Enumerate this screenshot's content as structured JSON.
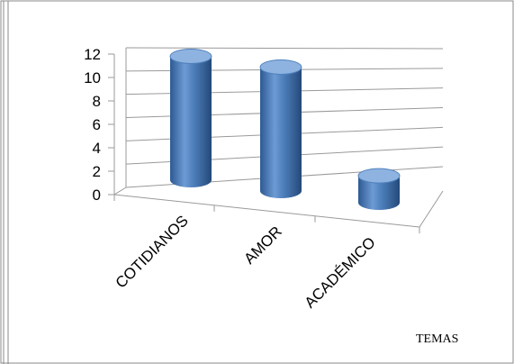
{
  "chart_data": {
    "type": "bar",
    "style": "3d-cylinder",
    "categories": [
      "COTIDIANOS",
      "AMOR",
      "ACADÉMICO"
    ],
    "values": [
      11.5,
      11.5,
      2.5
    ],
    "ylim": [
      0,
      12
    ],
    "yticks": [
      "0",
      "2",
      "4",
      "6",
      "8",
      "10",
      "12"
    ],
    "xlabel": "TEMAS",
    "ylabel": "",
    "title": "",
    "grid": true,
    "legend": "none",
    "colors": {
      "bar": "#4f81bd",
      "bar_dark": "#2d5a92",
      "bar_light": "#8fb3e0",
      "grid": "#9a9a9a",
      "frame": "#888888"
    }
  }
}
